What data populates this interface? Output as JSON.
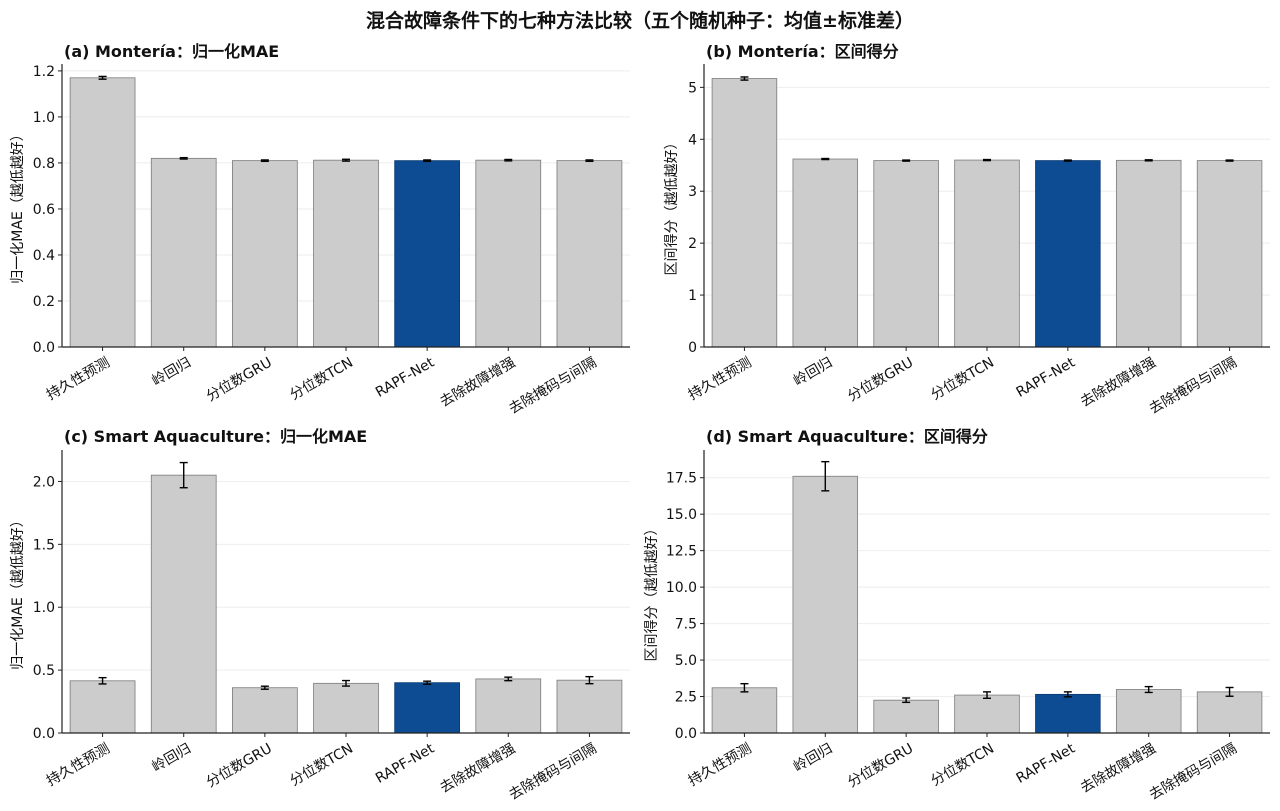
{
  "figure_title": "混合故障条件下的七种方法比较（五个随机种子：均值±标准差）",
  "chart_data": [
    {
      "type": "bar",
      "title": "(a) Montería：归一化MAE",
      "ylabel": "归一化MAE（越低越好）",
      "xlabel": "",
      "categories": [
        "持久性预测",
        "岭回归",
        "分位数GRU",
        "分位数TCN",
        "RAPF-Net",
        "去除故障增强",
        "去除掩码与间隔"
      ],
      "values": [
        1.17,
        0.82,
        0.81,
        0.812,
        0.81,
        0.812,
        0.81
      ],
      "errors": [
        0.006,
        0.003,
        0.003,
        0.004,
        0.003,
        0.003,
        0.003
      ],
      "ylim": [
        0,
        1.23
      ],
      "yticks": [
        0.0,
        0.2,
        0.4,
        0.6,
        0.8,
        1.0,
        1.2
      ],
      "ytick_labels": [
        "0.0",
        "0.2",
        "0.4",
        "0.6",
        "0.8",
        "1.0",
        "1.2"
      ],
      "highlight": "RAPF-Net",
      "grid": "horizontal"
    },
    {
      "type": "bar",
      "title": "(b) Montería：区间得分",
      "ylabel": "区间得分（越低越好）",
      "xlabel": "",
      "categories": [
        "持久性预测",
        "岭回归",
        "分位数GRU",
        "分位数TCN",
        "RAPF-Net",
        "去除故障增强",
        "去除掩码与间隔"
      ],
      "values": [
        5.17,
        3.62,
        3.59,
        3.6,
        3.59,
        3.595,
        3.59
      ],
      "errors": [
        0.03,
        0.01,
        0.01,
        0.01,
        0.01,
        0.01,
        0.01
      ],
      "ylim": [
        0,
        5.45
      ],
      "yticks": [
        0,
        1,
        2,
        3,
        4,
        5
      ],
      "ytick_labels": [
        "0",
        "1",
        "2",
        "3",
        "4",
        "5"
      ],
      "highlight": "RAPF-Net",
      "grid": "horizontal"
    },
    {
      "type": "bar",
      "title": "(c) Smart Aquaculture：归一化MAE",
      "ylabel": "归一化MAE（越低越好）",
      "xlabel": "",
      "categories": [
        "持久性预测",
        "岭回归",
        "分位数GRU",
        "分位数TCN",
        "RAPF-Net",
        "去除故障增强",
        "去除掩码与间隔"
      ],
      "values": [
        0.415,
        2.05,
        0.36,
        0.395,
        0.4,
        0.43,
        0.42
      ],
      "errors": [
        0.025,
        0.1,
        0.012,
        0.022,
        0.012,
        0.014,
        0.028
      ],
      "ylim": [
        0,
        2.25
      ],
      "yticks": [
        0.0,
        0.5,
        1.0,
        1.5,
        2.0
      ],
      "ytick_labels": [
        "0.0",
        "0.5",
        "1.0",
        "1.5",
        "2.0"
      ],
      "highlight": "RAPF-Net",
      "grid": "horizontal"
    },
    {
      "type": "bar",
      "title": "(d) Smart Aquaculture：区间得分",
      "ylabel": "区间得分（越低越好）",
      "xlabel": "",
      "categories": [
        "持久性预测",
        "岭回归",
        "分位数GRU",
        "分位数TCN",
        "RAPF-Net",
        "去除故障增强",
        "去除掩码与间隔"
      ],
      "values": [
        3.1,
        17.6,
        2.25,
        2.6,
        2.65,
        2.98,
        2.82
      ],
      "errors": [
        0.28,
        1.0,
        0.15,
        0.22,
        0.17,
        0.2,
        0.3
      ],
      "ylim": [
        0,
        19.4
      ],
      "yticks": [
        0.0,
        2.5,
        5.0,
        7.5,
        10.0,
        12.5,
        15.0,
        17.5
      ],
      "ytick_labels": [
        "0.0",
        "2.5",
        "5.0",
        "7.5",
        "10.0",
        "12.5",
        "15.0",
        "17.5"
      ],
      "highlight": "RAPF-Net",
      "grid": "horizontal"
    }
  ],
  "colors": {
    "bar": "#cccccc",
    "bar_edge": "#7a7a7a",
    "highlight": "#0d4c92",
    "grid": "#eeeeee",
    "axis": "#222222",
    "text": "#111111"
  }
}
